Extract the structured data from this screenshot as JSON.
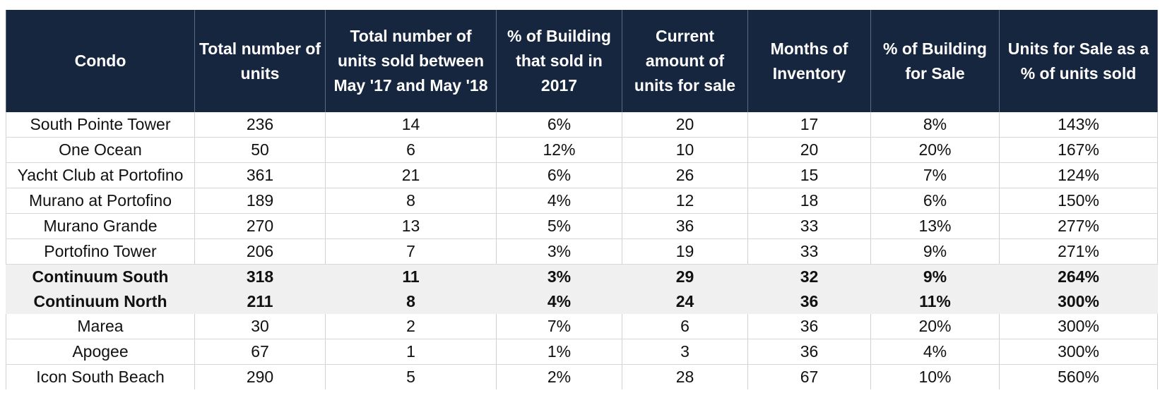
{
  "chart_data": {
    "type": "table",
    "columns": [
      "Condo",
      "Total number of units",
      "Total number of units sold between May '17 and May '18",
      "% of Building that sold in 2017",
      "Current amount of units for sale",
      "Months of Inventory",
      "% of Building for Sale",
      "Units for Sale as a % of units sold"
    ],
    "rows": [
      {
        "cells": [
          "South Pointe Tower",
          "236",
          "14",
          "6%",
          "20",
          "17",
          "8%",
          "143%"
        ],
        "highlight": false
      },
      {
        "cells": [
          "One Ocean",
          "50",
          "6",
          "12%",
          "10",
          "20",
          "20%",
          "167%"
        ],
        "highlight": false
      },
      {
        "cells": [
          "Yacht Club at Portofino",
          "361",
          "21",
          "6%",
          "26",
          "15",
          "7%",
          "124%"
        ],
        "highlight": false
      },
      {
        "cells": [
          "Murano at Portofino",
          "189",
          "8",
          "4%",
          "12",
          "18",
          "6%",
          "150%"
        ],
        "highlight": false
      },
      {
        "cells": [
          "Murano Grande",
          "270",
          "13",
          "5%",
          "36",
          "33",
          "13%",
          "277%"
        ],
        "highlight": false
      },
      {
        "cells": [
          "Portofino Tower",
          "206",
          "7",
          "3%",
          "19",
          "33",
          "9%",
          "271%"
        ],
        "highlight": false
      },
      {
        "cells": [
          "Continuum South",
          "318",
          "11",
          "3%",
          "29",
          "32",
          "9%",
          "264%"
        ],
        "highlight": true
      },
      {
        "cells": [
          "Continuum North",
          "211",
          "8",
          "4%",
          "24",
          "36",
          "11%",
          "300%"
        ],
        "highlight": true
      },
      {
        "cells": [
          "Marea",
          "30",
          "2",
          "7%",
          "6",
          "36",
          "20%",
          "300%"
        ],
        "highlight": false
      },
      {
        "cells": [
          "Apogee",
          "67",
          "1",
          "1%",
          "3",
          "36",
          "4%",
          "300%"
        ],
        "highlight": false
      },
      {
        "cells": [
          "Icon South Beach",
          "290",
          "5",
          "2%",
          "28",
          "67",
          "10%",
          "560%"
        ],
        "highlight": false
      }
    ]
  },
  "colors": {
    "header_background": "#17263f",
    "header_text": "#ffffff",
    "highlight_row_background": "#f0f0f0"
  }
}
